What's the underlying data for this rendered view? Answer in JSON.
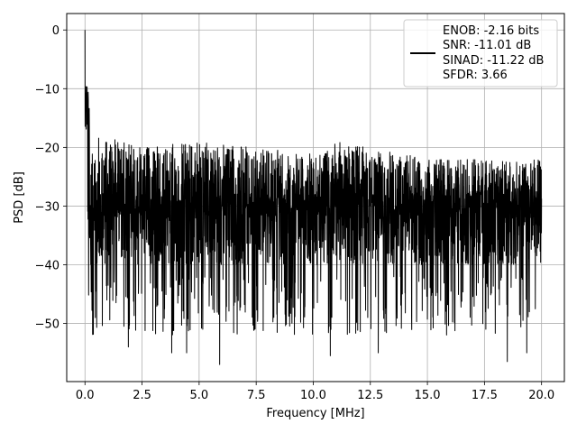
{
  "chart_data": {
    "type": "line",
    "xlabel": "Frequency [MHz]",
    "ylabel": "PSD [dB]",
    "xlim": [
      -0.8,
      21.0
    ],
    "ylim": [
      -59.9,
      2.8
    ],
    "xticks": [
      0.0,
      2.5,
      5.0,
      7.5,
      10.0,
      12.5,
      15.0,
      17.5,
      20.0
    ],
    "xtick_labels": [
      "0.0",
      "2.5",
      "5.0",
      "7.5",
      "10.0",
      "12.5",
      "15.0",
      "17.5",
      "20.0"
    ],
    "yticks": [
      0,
      -10,
      -20,
      -30,
      -40,
      -50
    ],
    "ytick_labels": [
      "0",
      "−10",
      "−20",
      "−30",
      "−40",
      "−50"
    ],
    "grid": true,
    "legend_position": "top-right",
    "series": [
      {
        "color": "#000000",
        "legend_lines": [
          "ENOB: -2.16 bits",
          "SNR: -11.01 dB",
          "SINAD: -11.22 dB",
          "SFDR: 3.66"
        ],
        "noise_floor_db": -30,
        "peak": {
          "x": 0.0,
          "y": 0
        },
        "envelope_upper": [
          {
            "x": 0.05,
            "y": -7
          },
          {
            "x": 0.15,
            "y": -10
          },
          {
            "x": 0.3,
            "y": -17
          },
          {
            "x": 1.0,
            "y": -18
          },
          {
            "x": 2.5,
            "y": -20
          },
          {
            "x": 5.0,
            "y": -19
          },
          {
            "x": 7.5,
            "y": -20
          },
          {
            "x": 10.0,
            "y": -21
          },
          {
            "x": 11.0,
            "y": -19
          },
          {
            "x": 12.5,
            "y": -20
          },
          {
            "x": 15.0,
            "y": -22
          },
          {
            "x": 17.5,
            "y": -22
          },
          {
            "x": 20.0,
            "y": -22
          }
        ],
        "notable_minima": [
          {
            "x": 0.45,
            "y": -49
          },
          {
            "x": 1.9,
            "y": -54
          },
          {
            "x": 3.8,
            "y": -55
          },
          {
            "x": 4.45,
            "y": -55
          },
          {
            "x": 5.9,
            "y": -57
          },
          {
            "x": 10.75,
            "y": -55.5
          },
          {
            "x": 12.85,
            "y": -55
          },
          {
            "x": 18.5,
            "y": -56.5
          },
          {
            "x": 19.35,
            "y": -55
          }
        ]
      }
    ]
  }
}
